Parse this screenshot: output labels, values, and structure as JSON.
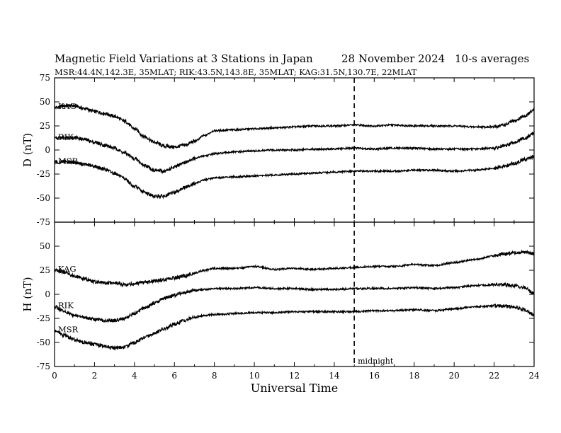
{
  "header": {
    "title": "Magnetic Field Variations at 3 Stations in Japan",
    "date": "28 November 2024",
    "averaging": "10-s averages",
    "stations": "MSR:44.4N,142.3E, 35MLAT;  RIK:43.5N,143.8E, 35MLAT;  KAG:31.5N,130.7E, 22MLAT"
  },
  "chart_data": [
    {
      "type": "line",
      "ylabel": "D (nT)",
      "xlim": [
        0,
        24
      ],
      "ylim": [
        -75,
        75
      ],
      "yticks": [
        -75,
        -50,
        -25,
        0,
        25,
        50,
        75
      ],
      "series": [
        {
          "name": "KAG",
          "x": [
            0,
            0.5,
            1,
            1.5,
            2,
            2.5,
            3,
            3.5,
            4,
            4.5,
            5,
            5.5,
            6,
            6.5,
            7,
            7.5,
            8,
            9,
            10,
            11,
            12,
            13,
            14,
            15,
            16,
            17,
            18,
            19,
            20,
            21,
            22,
            22.5,
            23,
            23.5,
            24
          ],
          "y": [
            44,
            46,
            46,
            43,
            40,
            38,
            35,
            30,
            22,
            14,
            8,
            4,
            3,
            5,
            9,
            15,
            20,
            21,
            22,
            23,
            24,
            25,
            25,
            26,
            25,
            26,
            25,
            25,
            25,
            24,
            24,
            26,
            30,
            35,
            41
          ]
        },
        {
          "name": "RIK",
          "x": [
            0,
            0.5,
            1,
            1.5,
            2,
            2.5,
            3,
            3.5,
            4,
            4.5,
            5,
            5.5,
            6,
            6.5,
            7,
            7.5,
            8,
            9,
            10,
            11,
            12,
            13,
            14,
            15,
            16,
            17,
            18,
            19,
            20,
            21,
            22,
            22.5,
            23,
            23.5,
            24
          ],
          "y": [
            12,
            13,
            13,
            11,
            8,
            5,
            2,
            -3,
            -9,
            -16,
            -21,
            -22,
            -18,
            -13,
            -9,
            -6,
            -4,
            -2,
            -1,
            0,
            0,
            1,
            1,
            2,
            1,
            2,
            2,
            1,
            1,
            1,
            2,
            4,
            8,
            12,
            17
          ]
        },
        {
          "name": "MSR",
          "x": [
            0,
            0.5,
            1,
            1.5,
            2,
            2.5,
            3,
            3.5,
            4,
            4.5,
            5,
            5.5,
            6,
            6.5,
            7,
            7.5,
            8,
            9,
            10,
            11,
            12,
            13,
            14,
            15,
            16,
            17,
            18,
            19,
            20,
            21,
            22,
            22.5,
            23,
            23.5,
            24
          ],
          "y": [
            -13,
            -12,
            -13,
            -15,
            -17,
            -20,
            -24,
            -30,
            -38,
            -44,
            -48,
            -48,
            -44,
            -39,
            -35,
            -31,
            -29,
            -28,
            -27,
            -26,
            -25,
            -24,
            -23,
            -22,
            -22,
            -22,
            -21,
            -21,
            -22,
            -21,
            -19,
            -17,
            -14,
            -10,
            -7
          ]
        }
      ]
    },
    {
      "type": "line",
      "ylabel": "H (nT)",
      "xlabel": "Universal Time",
      "xlim": [
        0,
        24
      ],
      "ylim": [
        -75,
        75
      ],
      "yticks": [
        -75,
        -50,
        -25,
        0,
        25,
        50
      ],
      "xticks": [
        0,
        2,
        4,
        6,
        8,
        10,
        12,
        14,
        16,
        18,
        20,
        22,
        24
      ],
      "series": [
        {
          "name": "KAG",
          "x": [
            0,
            0.5,
            1,
            1.5,
            2,
            2.5,
            3,
            3.5,
            4,
            4.5,
            5,
            5.5,
            6,
            6.5,
            7,
            7.5,
            8,
            9,
            10,
            11,
            12,
            13,
            14,
            15,
            16,
            17,
            18,
            19,
            20,
            21,
            22,
            22.5,
            23,
            23.5,
            24
          ],
          "y": [
            25,
            23,
            19,
            16,
            13,
            12,
            12,
            10,
            11,
            12,
            14,
            15,
            17,
            19,
            22,
            25,
            27,
            27,
            29,
            26,
            27,
            26,
            27,
            28,
            29,
            29,
            31,
            30,
            33,
            36,
            40,
            42,
            43,
            44,
            42
          ]
        },
        {
          "name": "RIK",
          "x": [
            0,
            0.5,
            1,
            1.5,
            2,
            2.5,
            3,
            3.5,
            4,
            4.5,
            5,
            5.5,
            6,
            6.5,
            7,
            7.5,
            8,
            9,
            10,
            11,
            12,
            13,
            14,
            15,
            16,
            17,
            18,
            19,
            20,
            21,
            22,
            22.5,
            23,
            23.5,
            24
          ],
          "y": [
            -13,
            -18,
            -22,
            -24,
            -26,
            -27,
            -27,
            -25,
            -20,
            -14,
            -9,
            -4,
            -1,
            2,
            4,
            5,
            6,
            6,
            7,
            6,
            6,
            5,
            5,
            6,
            6,
            6,
            7,
            6,
            7,
            9,
            10,
            10,
            9,
            7,
            1
          ]
        },
        {
          "name": "MSR",
          "x": [
            0,
            0.5,
            1,
            1.5,
            2,
            2.5,
            3,
            3.5,
            4,
            4.5,
            5,
            5.5,
            6,
            6.5,
            7,
            7.5,
            8,
            9,
            10,
            11,
            12,
            13,
            14,
            15,
            16,
            17,
            18,
            19,
            20,
            21,
            22,
            22.5,
            23,
            23.5,
            24
          ],
          "y": [
            -38,
            -43,
            -47,
            -50,
            -52,
            -54,
            -56,
            -55,
            -50,
            -45,
            -40,
            -36,
            -31,
            -27,
            -24,
            -22,
            -21,
            -20,
            -19,
            -19,
            -18,
            -18,
            -18,
            -18,
            -17,
            -17,
            -16,
            -17,
            -15,
            -13,
            -12,
            -12,
            -13,
            -16,
            -21
          ]
        }
      ]
    }
  ],
  "annotation": {
    "marker_time": 15,
    "marker_label": "midnight"
  }
}
